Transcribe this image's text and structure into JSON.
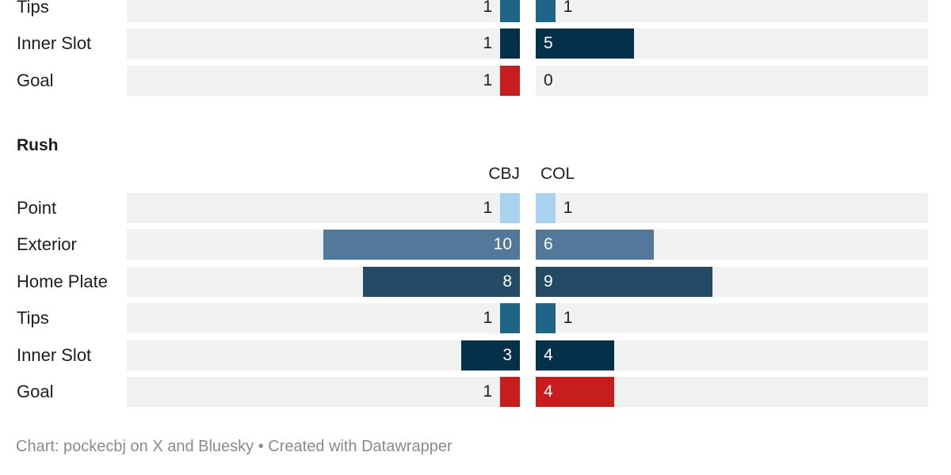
{
  "chart_data": {
    "type": "bar",
    "subtype": "mirrored-horizontal-bar",
    "series_names": [
      "CBJ",
      "COL"
    ],
    "xlim": [
      0,
      20
    ],
    "sections": [
      {
        "title": "",
        "show_header": false,
        "rows": [
          {
            "label": "Tips",
            "cbj": 1,
            "col": 1,
            "color": "#1f6587"
          },
          {
            "label": "Inner Slot",
            "cbj": 1,
            "col": 5,
            "color": "#05304a"
          },
          {
            "label": "Goal",
            "cbj": 1,
            "col": 0,
            "color": "#c71e1d"
          }
        ]
      },
      {
        "title": "Rush",
        "show_header": true,
        "rows": [
          {
            "label": "Point",
            "cbj": 1,
            "col": 1,
            "color": "#a9d2f1"
          },
          {
            "label": "Exterior",
            "cbj": 10,
            "col": 6,
            "color": "#52789a"
          },
          {
            "label": "Home Plate",
            "cbj": 8,
            "col": 9,
            "color": "#244b65"
          },
          {
            "label": "Tips",
            "cbj": 1,
            "col": 1,
            "color": "#1f6587"
          },
          {
            "label": "Inner Slot",
            "cbj": 3,
            "col": 4,
            "color": "#05304a"
          },
          {
            "label": "Goal",
            "cbj": 1,
            "col": 4,
            "color": "#c71e1d"
          }
        ]
      }
    ]
  },
  "footer": "Chart: pockecbj on X and Bluesky • Created with Datawrapper"
}
